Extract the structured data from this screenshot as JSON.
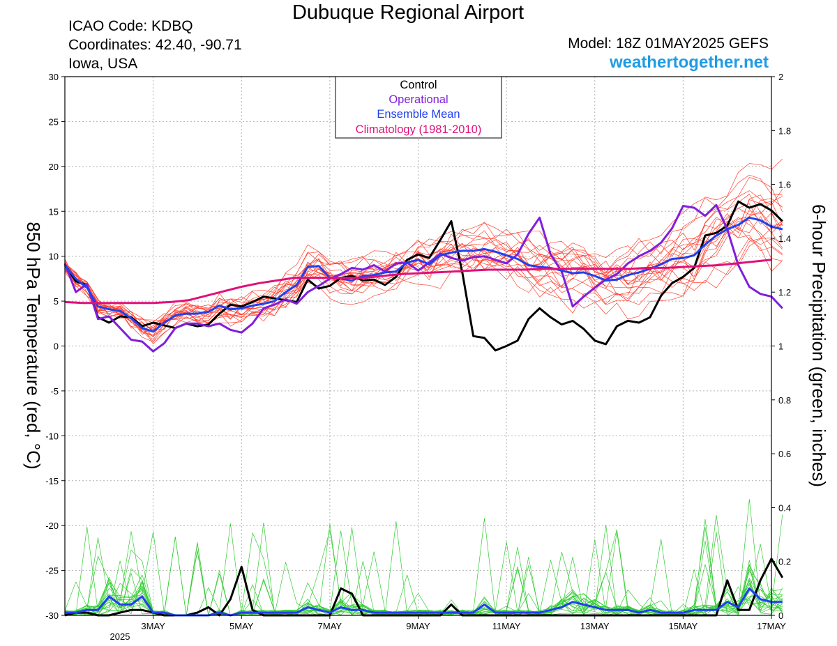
{
  "header": {
    "title": "Dubuque Regional Airport",
    "icao": "ICAO Code: KDBQ",
    "coordinates": "Coordinates: 42.40, -90.71",
    "region": "Iowa, USA",
    "model": "Model: 18Z 01MAY2025 GEFS",
    "site": "weathertogether.net"
  },
  "colors": {
    "ensemble_temp": "#ff4030",
    "ensemble_precip": "#33cc33",
    "control": "#000000",
    "operational": "#7f1fdc",
    "ensemble_mean": "#2040f0",
    "climatology": "#e0107a",
    "site": "#1e9be6"
  },
  "chart_data": {
    "type": "line",
    "x_range_hours": [
      -18,
      366
    ],
    "x_tick_labels": [
      "3MAY",
      "5MAY",
      "7MAY",
      "9MAY",
      "11MAY",
      "13MAY",
      "15MAY",
      "17MAY"
    ],
    "x_tick_hours": [
      30,
      78,
      126,
      174,
      222,
      270,
      318,
      366
    ],
    "x_sublabel": "2025",
    "ylabel_left": "850 hPa Temperature (red, °C)",
    "ylabel_right": "6-hour Precipitation (green, inches)",
    "ylim_left": [
      -30,
      30
    ],
    "yticks_left": [
      "30",
      "25",
      "20",
      "15",
      "10",
      "5",
      "0",
      "-5",
      "-10",
      "-15",
      "-20",
      "-25",
      "-30"
    ],
    "ylim_right": [
      0,
      2
    ],
    "yticks_right": [
      "2",
      "1.8",
      "1.6",
      "1.4",
      "1.2",
      "1",
      "0.8",
      "0.6",
      "0.4",
      "0.2",
      "0"
    ],
    "grid": true,
    "legend_position": "top-center",
    "legend": [
      "Control",
      "Operational",
      "Ensemble Mean",
      "Climatology (1981-2010)"
    ],
    "series_temperature": [
      {
        "name": "Control",
        "values": [
          9.0,
          7.2,
          6.8,
          3.2,
          2.6,
          3.3,
          3.2,
          2.2,
          2.6,
          2.3,
          2.0,
          2.5,
          2.2,
          2.4,
          3.6,
          4.6,
          4.4,
          4.9,
          5.5,
          5.3,
          5.1,
          4.9,
          7.4,
          6.4,
          6.7,
          7.6,
          7.8,
          7.3,
          7.4,
          6.8,
          7.7,
          9.6,
          10.2,
          9.8,
          11.8,
          13.9,
          8.2,
          1.1,
          0.9,
          -0.5,
          0.0,
          0.6,
          3.0,
          4.2,
          3.2,
          2.4,
          2.8,
          1.9,
          0.6,
          0.2,
          2.2,
          2.8,
          2.6,
          3.2,
          5.6,
          7.0,
          7.7,
          8.7,
          12.3,
          12.6,
          13.4,
          16.1,
          15.4,
          15.8,
          15.1,
          13.9
        ]
      },
      {
        "name": "Operational",
        "values": [
          9.2,
          6.0,
          6.9,
          3.0,
          3.3,
          2.0,
          0.7,
          0.5,
          -0.6,
          0.3,
          2.0,
          2.5,
          2.5,
          2.2,
          2.5,
          1.8,
          1.5,
          2.5,
          4.2,
          4.6,
          5.2,
          4.7,
          6.0,
          6.7,
          7.5,
          8.0,
          8.7,
          8.5,
          9.0,
          8.3,
          9.2,
          9.3,
          8.4,
          9.3,
          10.3,
          9.8,
          9.5,
          9.9,
          10.0,
          9.6,
          9.2,
          10.2,
          12.5,
          14.3,
          10.2,
          8.3,
          4.4,
          5.5,
          6.5,
          7.4,
          8.0,
          9.2,
          10.0,
          10.6,
          11.5,
          13.1,
          15.6,
          15.4,
          14.5,
          15.7,
          13.0,
          9.0,
          6.6,
          5.8,
          5.5,
          4.2
        ]
      },
      {
        "name": "Ensemble Mean",
        "values": [
          9.0,
          7.5,
          6.5,
          4.4,
          4.1,
          3.9,
          3.1,
          2.0,
          1.6,
          2.6,
          3.4,
          3.6,
          3.6,
          3.8,
          4.5,
          4.1,
          4.2,
          4.5,
          4.7,
          5.0,
          6.0,
          6.8,
          8.8,
          8.9,
          7.6,
          7.5,
          7.3,
          7.8,
          7.9,
          8.2,
          8.3,
          9.3,
          9.6,
          9.1,
          10.1,
          10.4,
          10.6,
          10.6,
          10.8,
          10.5,
          10.1,
          9.7,
          9.0,
          8.8,
          8.7,
          8.4,
          8.1,
          8.2,
          7.8,
          7.3,
          7.4,
          7.9,
          8.2,
          8.6,
          9.1,
          9.7,
          9.8,
          10.1,
          11.3,
          12.3,
          13.0,
          13.5,
          14.3,
          14.0,
          13.3,
          13.0
        ]
      },
      {
        "name": "Climatology (1981-2010)",
        "values": [
          4.9,
          4.8,
          4.8,
          4.8,
          4.8,
          4.8,
          4.9,
          5.1,
          5.6,
          6.1,
          6.6,
          7.0,
          7.3,
          7.6,
          7.6,
          7.6,
          7.6,
          7.6,
          7.8,
          8.0,
          8.1,
          8.2,
          8.3,
          8.4,
          8.5,
          8.5,
          8.5,
          8.6,
          8.6,
          8.6,
          8.6,
          8.6,
          8.6,
          8.7,
          8.7,
          8.8,
          8.9,
          9.0,
          9.2,
          9.4,
          9.6
        ]
      }
    ],
    "series_precipitation": [
      {
        "name": "Control",
        "values": [
          0,
          0.01,
          0.01,
          0,
          0,
          0.01,
          0.02,
          0.02,
          0.01,
          0,
          0,
          0,
          0.01,
          0.03,
          0,
          0.06,
          0.18,
          0.02,
          0,
          0,
          0,
          0,
          0,
          0,
          0,
          0.1,
          0.08,
          0,
          0,
          0,
          0,
          0,
          0,
          0,
          0,
          0.04,
          0,
          0,
          0,
          0,
          0,
          0,
          0,
          0,
          0,
          0,
          0,
          0,
          0,
          0,
          0,
          0,
          0,
          0,
          0,
          0,
          0,
          0,
          0,
          0,
          0.13,
          0.02,
          0.02,
          0.13,
          0.21,
          0.14
        ]
      },
      {
        "name": "Ensemble Mean",
        "values": [
          0.01,
          0.01,
          0.02,
          0.02,
          0.07,
          0.04,
          0.04,
          0.07,
          0.01,
          0.01,
          0,
          0,
          0,
          0,
          0.01,
          0,
          0.01,
          0.01,
          0.01,
          0.01,
          0.01,
          0.01,
          0.03,
          0.02,
          0.01,
          0.03,
          0.02,
          0.02,
          0.01,
          0.01,
          0.01,
          0.01,
          0.01,
          0.01,
          0.01,
          0.01,
          0.01,
          0.01,
          0.04,
          0.01,
          0.01,
          0.01,
          0.01,
          0.01,
          0.02,
          0.03,
          0.05,
          0.04,
          0.03,
          0.02,
          0.02,
          0.02,
          0.01,
          0.02,
          0.01,
          0.01,
          0.01,
          0.02,
          0.02,
          0.02,
          0.05,
          0.03,
          0.1,
          0.06,
          0.05,
          0.05
        ]
      }
    ]
  }
}
